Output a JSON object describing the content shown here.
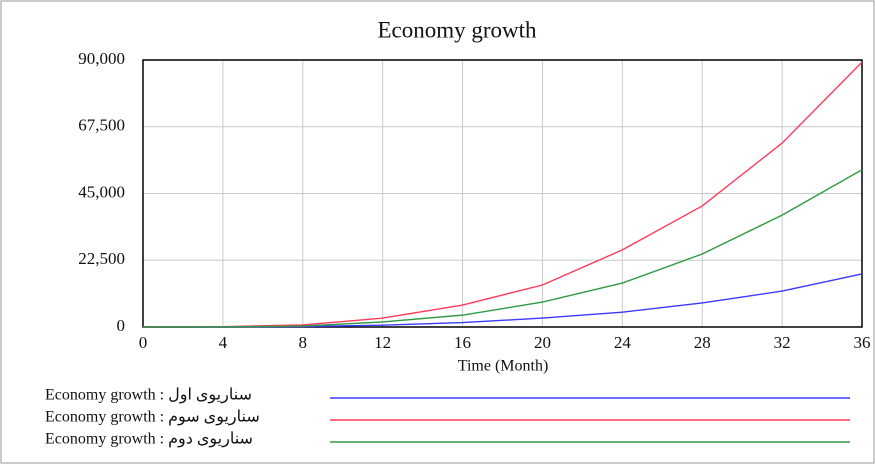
{
  "chart_data": {
    "type": "line",
    "title": "Economy growth",
    "x_label": "Time (Month)",
    "x": [
      0,
      4,
      8,
      12,
      16,
      20,
      24,
      28,
      32,
      36
    ],
    "xlim": [
      0,
      36
    ],
    "xticks": [
      0,
      4,
      8,
      12,
      16,
      20,
      24,
      28,
      32,
      36
    ],
    "ylim": [
      0,
      90000
    ],
    "yticks": [
      0,
      {
        "value": 22500,
        "label": "22,500"
      },
      {
        "value": 45000,
        "label": "45,000"
      },
      {
        "value": 67500,
        "label": "67,500"
      },
      {
        "value": 90000,
        "label": "90,000"
      }
    ],
    "grid": true,
    "series": [
      {
        "name": "Economy growth : سناریوی اول",
        "color": "#3a3aff",
        "values": [
          0,
          20,
          150,
          600,
          1500,
          3000,
          5000,
          8100,
          12100,
          17900
        ]
      },
      {
        "name": "Economy growth : سناریوی سوم",
        "color": "#ff3a5a",
        "values": [
          0,
          100,
          700,
          3000,
          7400,
          14150,
          26000,
          40800,
          62000,
          89300
        ]
      },
      {
        "name": "Economy growth : سناریوی دوم",
        "color": "#2e9a46",
        "values": [
          0,
          50,
          300,
          1700,
          4000,
          8400,
          14800,
          24600,
          37700,
          53000
        ]
      }
    ]
  }
}
